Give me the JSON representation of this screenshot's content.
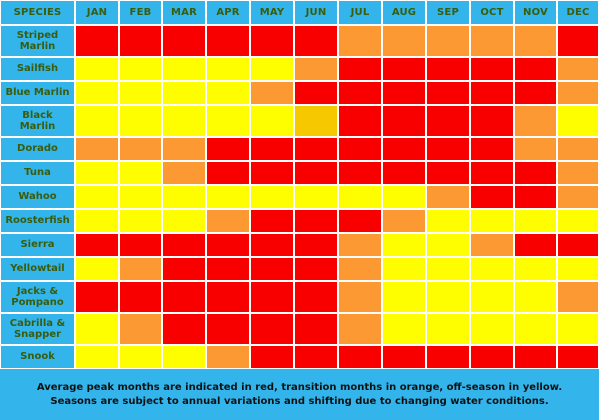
{
  "colors": {
    "header_bg": "#33b5ec",
    "label_text": "#3b5c0a",
    "grid_line": "#ffffff",
    "peak": "#f90000",
    "transition": "#fd9933",
    "offseason": "#fefe00",
    "alt_transition": "#f5c800"
  },
  "chart_data": {
    "type": "table",
    "corner_label": "SPECIES",
    "months": [
      "JAN",
      "FEB",
      "MAR",
      "APR",
      "MAY",
      "JUN",
      "JUL",
      "AUG",
      "SEP",
      "OCT",
      "NOV",
      "DEC"
    ],
    "legend": {
      "P": "peak",
      "T": "transition",
      "O": "off-season"
    },
    "species": [
      {
        "name": "Striped Marlin",
        "months": [
          "P",
          "P",
          "P",
          "P",
          "P",
          "P",
          "T",
          "T",
          "T",
          "T",
          "T",
          "P"
        ]
      },
      {
        "name": "Sailfish",
        "months": [
          "O",
          "O",
          "O",
          "O",
          "O",
          "T",
          "P",
          "P",
          "P",
          "P",
          "P",
          "T"
        ]
      },
      {
        "name": "Blue Marlin",
        "months": [
          "O",
          "O",
          "O",
          "O",
          "T",
          "P",
          "P",
          "P",
          "P",
          "P",
          "P",
          "T"
        ]
      },
      {
        "name": "Black Marlin",
        "months": [
          "O",
          "O",
          "O",
          "O",
          "O",
          "G",
          "P",
          "P",
          "P",
          "P",
          "T",
          "O"
        ]
      },
      {
        "name": "Dorado",
        "months": [
          "T",
          "T",
          "T",
          "P",
          "P",
          "P",
          "P",
          "P",
          "P",
          "P",
          "T",
          "T"
        ]
      },
      {
        "name": "Tuna",
        "months": [
          "O",
          "O",
          "T",
          "P",
          "P",
          "P",
          "P",
          "P",
          "P",
          "P",
          "P",
          "T"
        ]
      },
      {
        "name": "Wahoo",
        "months": [
          "O",
          "O",
          "O",
          "O",
          "O",
          "O",
          "O",
          "O",
          "T",
          "P",
          "P",
          "T"
        ]
      },
      {
        "name": "Roosterfish",
        "months": [
          "O",
          "O",
          "O",
          "T",
          "P",
          "P",
          "P",
          "T",
          "O",
          "O",
          "O",
          "O"
        ]
      },
      {
        "name": "Sierra",
        "months": [
          "P",
          "P",
          "P",
          "P",
          "P",
          "P",
          "T",
          "O",
          "O",
          "T",
          "P",
          "P"
        ]
      },
      {
        "name": "Yellowtail",
        "months": [
          "O",
          "T",
          "P",
          "P",
          "P",
          "P",
          "T",
          "O",
          "O",
          "O",
          "O",
          "O"
        ]
      },
      {
        "name": "Jacks & Pompano",
        "months": [
          "P",
          "P",
          "P",
          "P",
          "P",
          "P",
          "T",
          "O",
          "O",
          "O",
          "O",
          "T"
        ]
      },
      {
        "name": "Cabrilla & Snapper",
        "months": [
          "O",
          "T",
          "P",
          "P",
          "P",
          "P",
          "T",
          "O",
          "O",
          "O",
          "O",
          "O"
        ]
      },
      {
        "name": "Snook",
        "months": [
          "O",
          "O",
          "O",
          "T",
          "P",
          "P",
          "P",
          "P",
          "P",
          "P",
          "P",
          "P"
        ]
      }
    ]
  },
  "footer": {
    "line1": "Average peak months are indicated in red, transition months in orange, off-season in yellow.",
    "line2": "Seasons are subject to annual variations and shifting due to changing water conditions."
  }
}
